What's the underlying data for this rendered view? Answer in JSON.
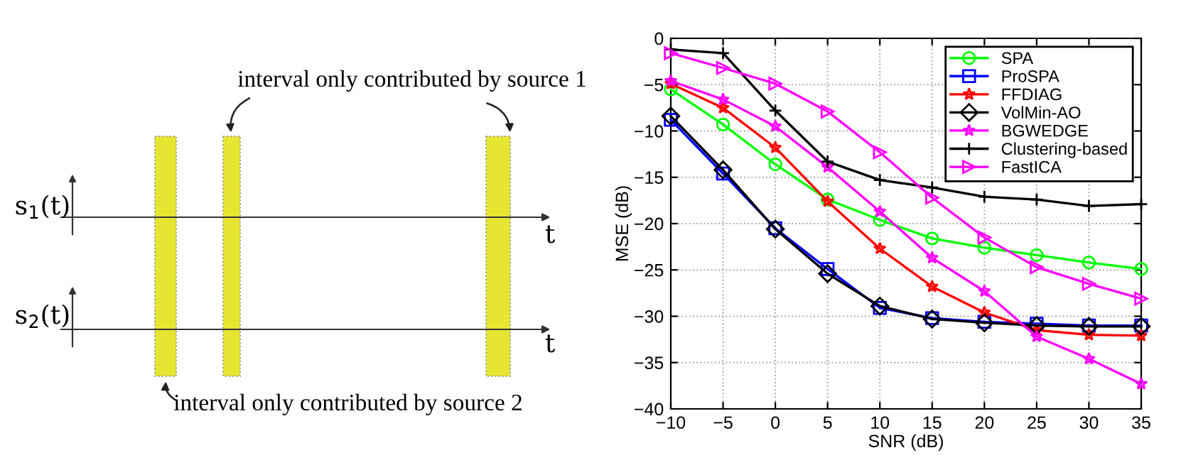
{
  "chart_data": [
    {
      "type": "other",
      "annotations": [
        "interval only contributed by source 1",
        "interval only contributed by source 2",
        "s$_{1}$(t)",
        "s$_{2}$(t)",
        "t",
        "t"
      ]
    },
    {
      "type": "line",
      "xlabel": "SNR (dB)",
      "ylabel": "MSE (dB)",
      "x": [
        -10,
        -5,
        0,
        5,
        10,
        15,
        20,
        25,
        30,
        35
      ],
      "xlim": [
        -10,
        35
      ],
      "xticks": [
        -10,
        -5,
        0,
        5,
        10,
        15,
        20,
        25,
        30,
        35
      ],
      "ylim": [
        -40,
        0
      ],
      "yticks": [
        -40,
        -35,
        -30,
        -25,
        -20,
        -15,
        -10,
        -5,
        0
      ],
      "grid": true,
      "legend": "top right",
      "line_style": "solid",
      "series": [
        {
          "name": "SPA",
          "color": "#00ff00",
          "marker": "circle",
          "values": [
            -5.5,
            -9.3,
            -13.6,
            -17.4,
            -19.6,
            -21.6,
            -22.6,
            -23.4,
            -24.2,
            -24.9
          ]
        },
        {
          "name": "ProSPA",
          "color": "#0000ff",
          "marker": "square",
          "values": [
            -8.8,
            -14.6,
            -20.5,
            -24.9,
            -29.1,
            -30.2,
            -30.6,
            -30.8,
            -31.0,
            -31.0
          ]
        },
        {
          "name": "FFDIAG",
          "color": "#ff0000",
          "marker": "star",
          "values": [
            -4.9,
            -7.5,
            -11.8,
            -17.6,
            -22.7,
            -26.8,
            -29.6,
            -31.5,
            -32.0,
            -32.1
          ]
        },
        {
          "name": "VolMin-AO",
          "color": "#000000",
          "marker": "diamond",
          "values": [
            -8.4,
            -14.2,
            -20.6,
            -25.4,
            -28.9,
            -30.3,
            -30.7,
            -31.0,
            -31.1,
            -31.1
          ]
        },
        {
          "name": "BGWEDGE",
          "color": "#ff00ff",
          "marker": "star",
          "values": [
            -4.6,
            -6.6,
            -9.5,
            -13.9,
            -18.7,
            -23.7,
            -27.3,
            -32.2,
            -34.6,
            -37.3
          ]
        },
        {
          "name": "Clustering-based",
          "color": "#000000",
          "marker": "cross",
          "values": [
            -1.2,
            -1.6,
            -7.8,
            -13.3,
            -15.3,
            -16.1,
            -17.1,
            -17.4,
            -18.1,
            -17.9
          ]
        },
        {
          "name": "FastICA",
          "color": "#ff00ff",
          "marker": "triangle",
          "values": [
            -1.6,
            -3.2,
            -4.9,
            -7.9,
            -12.3,
            -17.2,
            -21.5,
            -24.7,
            -26.5,
            -28.1
          ]
        }
      ]
    }
  ]
}
